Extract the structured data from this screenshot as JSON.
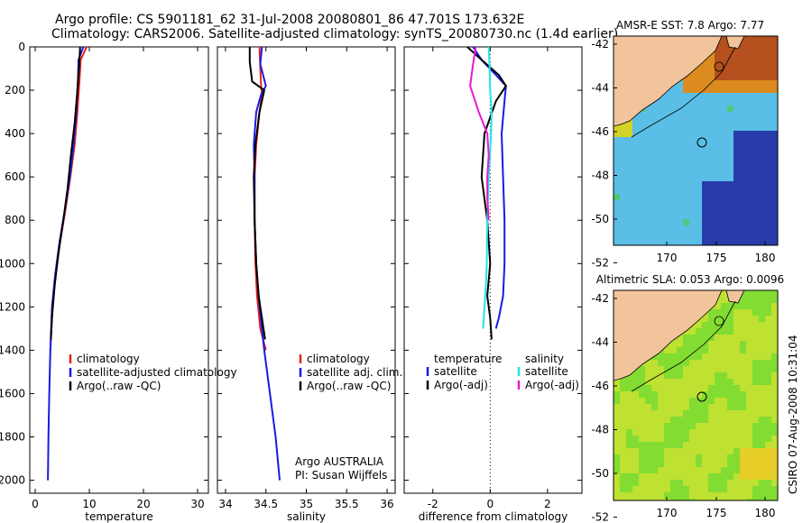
{
  "header": {
    "line1": "Argo profile: CS 5901181_62 31-Jul-2008 20080801_86 47.701S 173.632E",
    "line2": "Climatology: CARS2006. Satellite-adjusted climatology: synTS_20080730.nc (1.4d earlier)"
  },
  "side_label": "CSIRO 07-Aug-2008 10:31:04",
  "colors": {
    "red": "#e8231a",
    "blue": "#1a1ae6",
    "black": "#000000",
    "cyan": "#1fe6e6",
    "magenta": "#e61ad2",
    "land": "#f2c49c"
  },
  "chart_data": [
    {
      "type": "line",
      "xlabel": "temperature",
      "ylabel": "",
      "xlim": [
        -1,
        32
      ],
      "ylim": [
        2060,
        0
      ],
      "xticks": [
        0,
        10,
        20,
        30
      ],
      "yticks": [
        0,
        200,
        400,
        600,
        800,
        1000,
        1200,
        1400,
        1600,
        1800,
        2000
      ],
      "legend": [
        "climatology",
        "satellite-adjusted climatology",
        "Argo(..raw -QC)"
      ],
      "series": [
        {
          "name": "climatology",
          "color": "red",
          "x": [
            9.5,
            8.4,
            8.2,
            7.8,
            7.3,
            6.5,
            5.6,
            4.6,
            3.8,
            3.2,
            2.8
          ],
          "y": [
            0,
            60,
            150,
            300,
            450,
            600,
            750,
            900,
            1050,
            1200,
            1400
          ]
        },
        {
          "name": "satellite-adjusted climatology",
          "color": "blue",
          "x": [
            8.9,
            8.0,
            7.9,
            7.6,
            7.1,
            6.4,
            5.5,
            4.5,
            3.7,
            3.1,
            2.8,
            2.6,
            2.45,
            2.35
          ],
          "y": [
            0,
            60,
            150,
            300,
            450,
            600,
            750,
            900,
            1050,
            1200,
            1400,
            1600,
            1800,
            2000
          ]
        },
        {
          "name": "Argo(..raw -QC)",
          "color": "black",
          "x": [
            8.3,
            8.1,
            7.8,
            7.3,
            6.6,
            6.0,
            5.2,
            4.3,
            3.6,
            3.1,
            2.9
          ],
          "y": [
            0,
            100,
            200,
            350,
            500,
            650,
            800,
            950,
            1100,
            1250,
            1350
          ]
        }
      ]
    },
    {
      "type": "line",
      "xlabel": "salinity",
      "ylabel": "",
      "xlim": [
        33.9,
        36.1
      ],
      "ylim": [
        2060,
        0
      ],
      "xticks": [
        34,
        34.5,
        35,
        35.5,
        36
      ],
      "legend": [
        "climatology",
        "satellite adj. clim.",
        "Argo(..raw -QC)"
      ],
      "series": [
        {
          "name": "climatology",
          "color": "red",
          "x": [
            34.42,
            34.43,
            34.44,
            34.45,
            34.42,
            34.38,
            34.36,
            34.36,
            34.37,
            34.39,
            34.43,
            34.5
          ],
          "y": [
            0,
            100,
            180,
            220,
            300,
            450,
            600,
            800,
            1000,
            1150,
            1300,
            1400
          ]
        },
        {
          "name": "satellite adj. clim.",
          "color": "blue",
          "x": [
            34.45,
            34.43,
            34.5,
            34.44,
            34.38,
            34.35,
            34.36,
            34.36,
            34.38,
            34.42,
            34.48,
            34.55,
            34.62,
            34.67
          ],
          "y": [
            0,
            80,
            180,
            220,
            300,
            450,
            600,
            800,
            1000,
            1200,
            1400,
            1600,
            1800,
            2000
          ]
        },
        {
          "name": "Argo(..raw -QC)",
          "color": "black",
          "x": [
            34.3,
            34.3,
            34.33,
            34.48,
            34.42,
            34.37,
            34.35,
            34.36,
            34.38,
            34.41,
            34.45,
            34.49
          ],
          "y": [
            0,
            70,
            160,
            200,
            300,
            450,
            600,
            800,
            1000,
            1150,
            1250,
            1350
          ]
        }
      ],
      "annotation": [
        "Argo AUSTRALIA",
        "PI: Susan Wijffels"
      ]
    },
    {
      "type": "line",
      "xlabel": "difference from climatology",
      "ylabel": "",
      "xlim": [
        -3,
        3.2
      ],
      "ylim": [
        2060,
        0
      ],
      "xticks": [
        -2,
        0,
        2
      ],
      "legend": [
        "temperature",
        "satellite",
        "Argo(-adj)",
        "salinity",
        "satellite",
        "Argo(-adj)"
      ],
      "series": [
        {
          "name": "temperature satellite",
          "color": "blue",
          "x": [
            -0.6,
            -0.3,
            0.2,
            0.55,
            0.5,
            0.4,
            0.45,
            0.5,
            0.5,
            0.45,
            0.3,
            0.2
          ],
          "y": [
            0,
            60,
            130,
            180,
            250,
            400,
            600,
            800,
            1000,
            1150,
            1250,
            1300
          ]
        },
        {
          "name": "temperature Argo(-adj)",
          "color": "black",
          "x": [
            -0.8,
            -0.3,
            0.3,
            0.55,
            0.2,
            -0.2,
            -0.3,
            -0.1,
            0.0,
            -0.1,
            0.0,
            0.05
          ],
          "y": [
            0,
            60,
            130,
            180,
            250,
            400,
            600,
            800,
            1000,
            1150,
            1250,
            1350
          ]
        },
        {
          "name": "salinity satellite",
          "color": "cyan",
          "x": [
            -0.05,
            -0.02,
            0.0,
            0.05,
            0.03,
            -0.05,
            -0.1,
            -0.12,
            -0.15,
            -0.2,
            -0.25
          ],
          "y": [
            0,
            100,
            200,
            300,
            400,
            600,
            800,
            1000,
            1100,
            1200,
            1300
          ]
        },
        {
          "name": "salinity Argo(-adj)",
          "color": "magenta",
          "x": [
            -0.5,
            -0.6,
            -0.7,
            -0.4,
            -0.1,
            -0.05,
            -0.1,
            -0.1,
            -0.05
          ],
          "y": [
            0,
            80,
            180,
            300,
            400,
            500,
            600,
            700,
            800
          ]
        }
      ]
    }
  ],
  "maps": [
    {
      "title": "AMSR-E SST: 7.8 Argo: 7.77",
      "xticks": [
        "170",
        "175",
        "180"
      ],
      "yticks": [
        "-42",
        "-44",
        "-46",
        "-48",
        "-50",
        "-52"
      ],
      "type": "sst"
    },
    {
      "title": "Altimetric SLA: 0.053 Argo: 0.0096",
      "xticks": [
        "170",
        "175",
        "180"
      ],
      "yticks": [
        "-42",
        "-44",
        "-46",
        "-48",
        "-50",
        "-52"
      ],
      "type": "sla"
    }
  ]
}
